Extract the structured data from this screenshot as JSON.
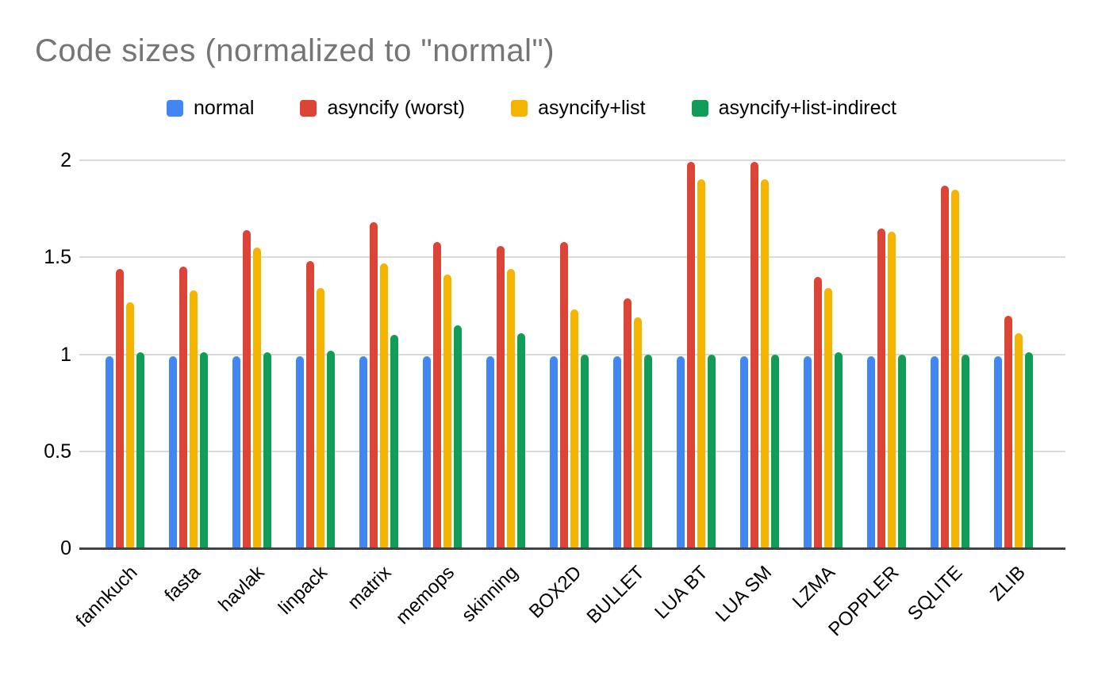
{
  "title": "Code sizes (normalized to \"normal\")",
  "legend": {
    "items": [
      {
        "label": "normal",
        "color": "#4285F4",
        "icon": "legend-swatch-blue"
      },
      {
        "label": "asyncify (worst)",
        "color": "#DB4437",
        "icon": "legend-swatch-red"
      },
      {
        "label": "asyncify+list",
        "color": "#F4B400",
        "icon": "legend-swatch-yellow"
      },
      {
        "label": "asyncify+list-indirect",
        "color": "#0F9D58",
        "icon": "legend-swatch-green"
      }
    ]
  },
  "chart_data": {
    "type": "bar",
    "title": "Code sizes (normalized to \"normal\")",
    "xlabel": "",
    "ylabel": "",
    "categories": [
      "fannkuch",
      "fasta",
      "havlak",
      "linpack",
      "matrix",
      "memops",
      "skinning",
      "BOX2D",
      "BULLET",
      "LUA BT",
      "LUA SM",
      "LZMA",
      "POPPLER",
      "SQLITE",
      "ZLIB"
    ],
    "series": [
      {
        "name": "normal",
        "color": "#4285F4",
        "values": [
          0.99,
          0.99,
          0.99,
          0.99,
          0.99,
          0.99,
          0.99,
          0.99,
          0.99,
          0.99,
          0.99,
          0.99,
          0.99,
          0.99,
          0.99
        ]
      },
      {
        "name": "asyncify (worst)",
        "color": "#DB4437",
        "values": [
          1.44,
          1.45,
          1.64,
          1.48,
          1.68,
          1.58,
          1.56,
          1.58,
          1.29,
          1.99,
          1.99,
          1.4,
          1.65,
          1.87,
          1.2
        ]
      },
      {
        "name": "asyncify+list",
        "color": "#F4B400",
        "values": [
          1.27,
          1.33,
          1.55,
          1.34,
          1.47,
          1.41,
          1.44,
          1.23,
          1.19,
          1.9,
          1.9,
          1.34,
          1.63,
          1.85,
          1.11
        ]
      },
      {
        "name": "asyncify+list-indirect",
        "color": "#0F9D58",
        "values": [
          1.01,
          1.01,
          1.01,
          1.02,
          1.1,
          1.15,
          1.11,
          1.0,
          1.0,
          1.0,
          1.0,
          1.01,
          1.0,
          1.0,
          1.01
        ]
      }
    ],
    "ylim": [
      0,
      2
    ],
    "yticks": [
      0,
      0.5,
      1,
      1.5,
      2
    ],
    "ytick_labels": [
      "0",
      "0.5",
      "1",
      "1.5",
      "2"
    ],
    "grid": true,
    "legend_position": "top"
  },
  "colors": {
    "background": "#ffffff",
    "title_text": "#757575",
    "axis_text": "#000000",
    "gridline": "#d9d9d9",
    "baseline": "#424242"
  }
}
